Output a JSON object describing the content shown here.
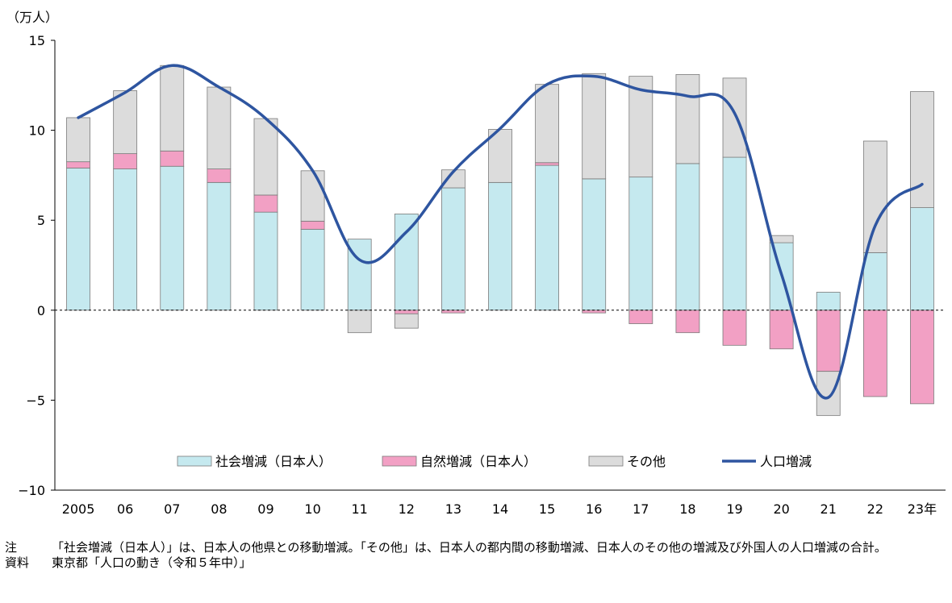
{
  "chart_data": {
    "type": "bar",
    "stacked": true,
    "unit_label": "（万人）",
    "categories": [
      "2005",
      "06",
      "07",
      "08",
      "09",
      "10",
      "11",
      "12",
      "13",
      "14",
      "15",
      "16",
      "17",
      "18",
      "19",
      "20",
      "21",
      "22",
      "23年"
    ],
    "ylim": [
      -10,
      15
    ],
    "yticks": [
      15,
      10,
      5,
      0,
      -5,
      -10
    ],
    "ytick_labels": [
      "15",
      "10",
      "5",
      "0",
      "−5",
      "−10"
    ],
    "series": [
      {
        "name": "社会増減（日本人）",
        "type": "bar",
        "color": "#c5e9ef",
        "values": [
          7.9,
          7.85,
          8.0,
          7.1,
          5.45,
          4.5,
          3.95,
          5.35,
          6.8,
          7.1,
          8.05,
          7.3,
          7.4,
          8.15,
          8.5,
          3.75,
          1.0,
          3.2,
          5.7
        ]
      },
      {
        "name": "自然増減（日本人）",
        "type": "bar",
        "color": "#f2a0c4",
        "values": [
          0.35,
          0.85,
          0.85,
          0.75,
          0.95,
          0.45,
          0.0,
          -0.2,
          -0.15,
          0.0,
          0.15,
          -0.15,
          -0.75,
          -1.25,
          -1.95,
          -2.15,
          -3.4,
          -4.8,
          -5.2
        ]
      },
      {
        "name": "その他",
        "type": "bar",
        "color": "#dcdcdc",
        "values": [
          2.45,
          3.5,
          4.75,
          4.55,
          4.25,
          2.8,
          -1.25,
          -0.8,
          1.0,
          2.95,
          4.35,
          5.85,
          5.6,
          4.95,
          4.4,
          0.4,
          -2.45,
          6.2,
          6.45
        ]
      },
      {
        "name": "人口増減",
        "type": "line",
        "color": "#2e55a0",
        "values": [
          10.7,
          12.1,
          13.6,
          12.4,
          10.65,
          7.75,
          2.8,
          4.35,
          7.7,
          10.1,
          12.55,
          13.0,
          12.25,
          11.9,
          10.95,
          2.0,
          -4.85,
          4.7,
          7.0
        ]
      }
    ],
    "grid": false,
    "legend_position": "bottom-inside"
  },
  "notes": [
    {
      "key": "注",
      "text": "「社会増減（日本人）」は、日本人の他県との移動増減。「その他」は、日本人の都内間の移動増減、日本人のその他の増減及び外国人の人口増減の合計。"
    },
    {
      "key": "資料",
      "text": "東京都「人口の動き（令和５年中）」"
    }
  ]
}
